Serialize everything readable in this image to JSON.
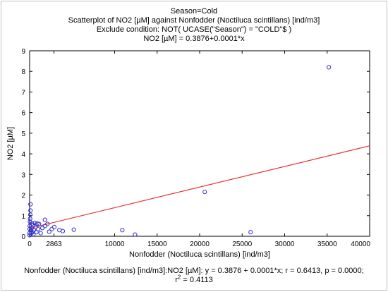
{
  "chart_data": {
    "type": "scatter",
    "title_lines": [
      "Season=Cold",
      "Scatterplot of NO2 [µM] against Nonfodder (Noctiluca scintillans) [ind/m3]",
      "Exclude condition: NOT( UCASE(\"Season\") = \"COLD\"$ )",
      "NO2 [µM] = 0.3876+0.0001*x"
    ],
    "xlabel": "Nonfodder (Noctiluca scintillans) [ind/m3]",
    "ylabel": "NO2 [µM]",
    "xlim": [
      0,
      40000
    ],
    "ylim": [
      0,
      9
    ],
    "x_ticks": [
      0,
      2863,
      10000,
      15000,
      20000,
      25000,
      30000,
      35000,
      40000
    ],
    "x_tick_labels": [
      "0",
      "2863",
      "10000",
      "15000",
      "20000",
      "25000",
      "30000",
      "35000",
      "40000"
    ],
    "y_ticks": [
      0,
      1,
      2,
      3,
      4,
      5,
      6,
      7,
      8,
      9
    ],
    "y_tick_labels": [
      "0",
      "1",
      "2",
      "3",
      "4",
      "5",
      "6",
      "7",
      "8",
      "9"
    ],
    "grid": false,
    "regression": {
      "intercept": 0.3876,
      "slope": 0.0001
    },
    "points": [
      {
        "x": 35200,
        "y": 8.2
      },
      {
        "x": 20600,
        "y": 2.15
      },
      {
        "x": 26000,
        "y": 0.2
      },
      {
        "x": 10900,
        "y": 0.3
      },
      {
        "x": 12400,
        "y": 0.08
      },
      {
        "x": 5200,
        "y": 0.32
      },
      {
        "x": 3900,
        "y": 0.25
      },
      {
        "x": 3500,
        "y": 0.3
      },
      {
        "x": 2900,
        "y": 0.45
      },
      {
        "x": 2600,
        "y": 0.35
      },
      {
        "x": 2300,
        "y": 0.22
      },
      {
        "x": 2100,
        "y": 0.6
      },
      {
        "x": 1800,
        "y": 0.8
      },
      {
        "x": 1800,
        "y": 0.5
      },
      {
        "x": 1500,
        "y": 0.4
      },
      {
        "x": 1300,
        "y": 0.15
      },
      {
        "x": 1100,
        "y": 0.6
      },
      {
        "x": 1000,
        "y": 0.35
      },
      {
        "x": 900,
        "y": 0.62
      },
      {
        "x": 800,
        "y": 0.2
      },
      {
        "x": 700,
        "y": 0.45
      },
      {
        "x": 600,
        "y": 0.65
      },
      {
        "x": 500,
        "y": 0.3
      },
      {
        "x": 450,
        "y": 0.1
      },
      {
        "x": 400,
        "y": 0.55
      },
      {
        "x": 350,
        "y": 0.2
      },
      {
        "x": 300,
        "y": 0.62
      },
      {
        "x": 250,
        "y": 0.4
      },
      {
        "x": 200,
        "y": 0.15
      },
      {
        "x": 150,
        "y": 0.3
      },
      {
        "x": 100,
        "y": 1.55
      },
      {
        "x": 100,
        "y": 1.25
      },
      {
        "x": 80,
        "y": 1.05
      },
      {
        "x": 60,
        "y": 0.85
      },
      {
        "x": 40,
        "y": 0.7
      },
      {
        "x": 20,
        "y": 0.5
      },
      {
        "x": 0,
        "y": 0.35
      },
      {
        "x": 0,
        "y": 0.15
      },
      {
        "x": 0,
        "y": 0.05
      }
    ],
    "point_color": "#2f2fcc",
    "line_color": "#e8312f",
    "footer_line1": "Nonfodder (Noctiluca scintillans) [ind/m3]:NO2 [µM]:   y = 0.3876 + 0.0001*x;  r = 0.6413, p = 0.0000;",
    "footer_r": "r",
    "footer_sup": "2",
    "footer_r2_value": " = 0.4113"
  }
}
